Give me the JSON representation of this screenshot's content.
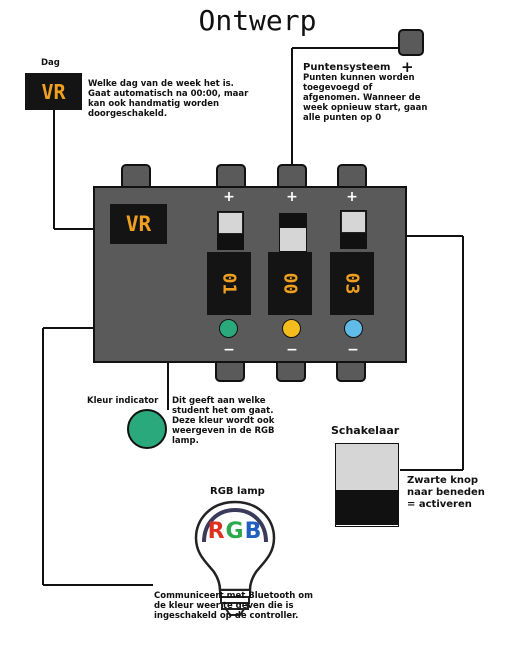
{
  "title": "Ontwerp",
  "day": {
    "label": "Dag",
    "value": "VR",
    "description": "Welke dag van de week het is. Gaat automatisch na 00:00, maar kan ook handmatig worden doorgeschakeld."
  },
  "points_system": {
    "label": "Puntensysteem",
    "plus": "+",
    "description": "Punten kunnen worden toegevoegd of afgenomen. Wanneer de week opnieuw start, gaan alle punten op 0"
  },
  "controller": {
    "day_display": "VR",
    "plus_sign": "+",
    "minus_sign": "−",
    "counters": [
      "01",
      "00",
      "03"
    ],
    "indicator_colors": [
      "#2aaa7c",
      "#f4bc1c",
      "#60bce6"
    ]
  },
  "color_indicator": {
    "label": "Kleur indicator",
    "color": "#2aaa7c",
    "description": "Dit geeft aan welke student het om gaat. Deze kleur wordt ook weergeven in de RGB lamp."
  },
  "switch": {
    "label": "Schakelaar",
    "description": "Zwarte knop naar beneden = activeren"
  },
  "rgb_lamp": {
    "label": "RGB lamp",
    "logo_text": "RGB",
    "description": "Communiceert met Bluetooth om de kleur weer te geven die is ingeschakeld op de controller."
  },
  "colors": {
    "panel": "#5a5a5a",
    "display_text": "#f0a020",
    "logo_r": "#e0301e",
    "logo_g": "#2aaa4a",
    "logo_b": "#2060c0"
  }
}
